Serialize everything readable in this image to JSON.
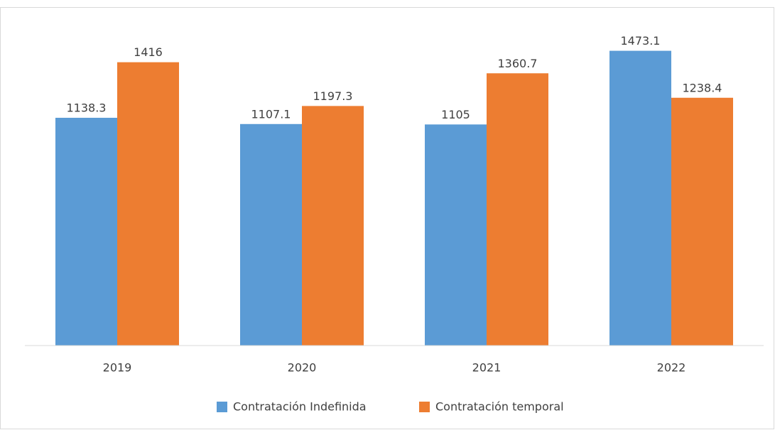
{
  "chart_data": {
    "type": "bar",
    "categories": [
      "2019",
      "2020",
      "2021",
      "2022"
    ],
    "series": [
      {
        "name": "Contratación Indefinida",
        "color": "#5b9bd5",
        "values": [
          1138.3,
          1107.1,
          1105,
          1473.1
        ]
      },
      {
        "name": "Contratación temporal",
        "color": "#ed7d31",
        "values": [
          1416,
          1197.3,
          1360.7,
          1238.4
        ]
      }
    ],
    "ylim": [
      0,
      1500
    ]
  }
}
